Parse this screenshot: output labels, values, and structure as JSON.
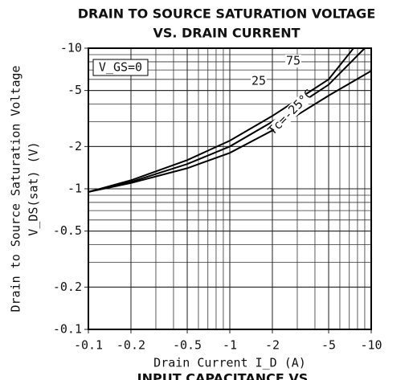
{
  "chart_data": {
    "type": "line",
    "title": "DRAIN TO SOURCE SATURATION VOLTAGE",
    "subtitle": "VS. DRAIN CURRENT",
    "x_label": "Drain Current I_D (A)",
    "y_label": "Drain to Source Saturation Voltage",
    "y_label_2": "V_DS(sat) (V)",
    "annotation": "V_GS=0",
    "footer_text": "INPUT CAPACITANCE VS.",
    "xscale": "log",
    "yscale": "log",
    "grid": true,
    "minor_grid": true,
    "xlim": [
      -0.1,
      -10
    ],
    "ylim": [
      -0.1,
      -10
    ],
    "xticks": [
      -0.1,
      -0.2,
      -0.5,
      -1,
      -2,
      -5,
      -10
    ],
    "yticks": [
      -0.1,
      -0.2,
      -0.5,
      -1,
      -2,
      -5,
      -10
    ],
    "series": [
      {
        "name": "75",
        "color": "#000000",
        "x": [
          -0.1,
          -0.2,
          -0.5,
          -1,
          -2,
          -5,
          -7.5
        ],
        "values": [
          -0.95,
          -1.15,
          -1.6,
          -2.2,
          -3.3,
          -6.0,
          -10
        ]
      },
      {
        "name": "25",
        "color": "#000000",
        "x": [
          -0.1,
          -0.2,
          -0.5,
          -1,
          -2,
          -5,
          -9
        ],
        "values": [
          -0.95,
          -1.12,
          -1.5,
          -2.0,
          -3.0,
          -5.5,
          -10
        ]
      },
      {
        "name": "Tc=-25°C",
        "color": "#000000",
        "x": [
          -0.1,
          -0.2,
          -0.5,
          -1,
          -2,
          -5,
          -10
        ],
        "values": [
          -0.95,
          -1.1,
          -1.4,
          -1.8,
          -2.6,
          -4.6,
          -6.9
        ]
      }
    ]
  }
}
